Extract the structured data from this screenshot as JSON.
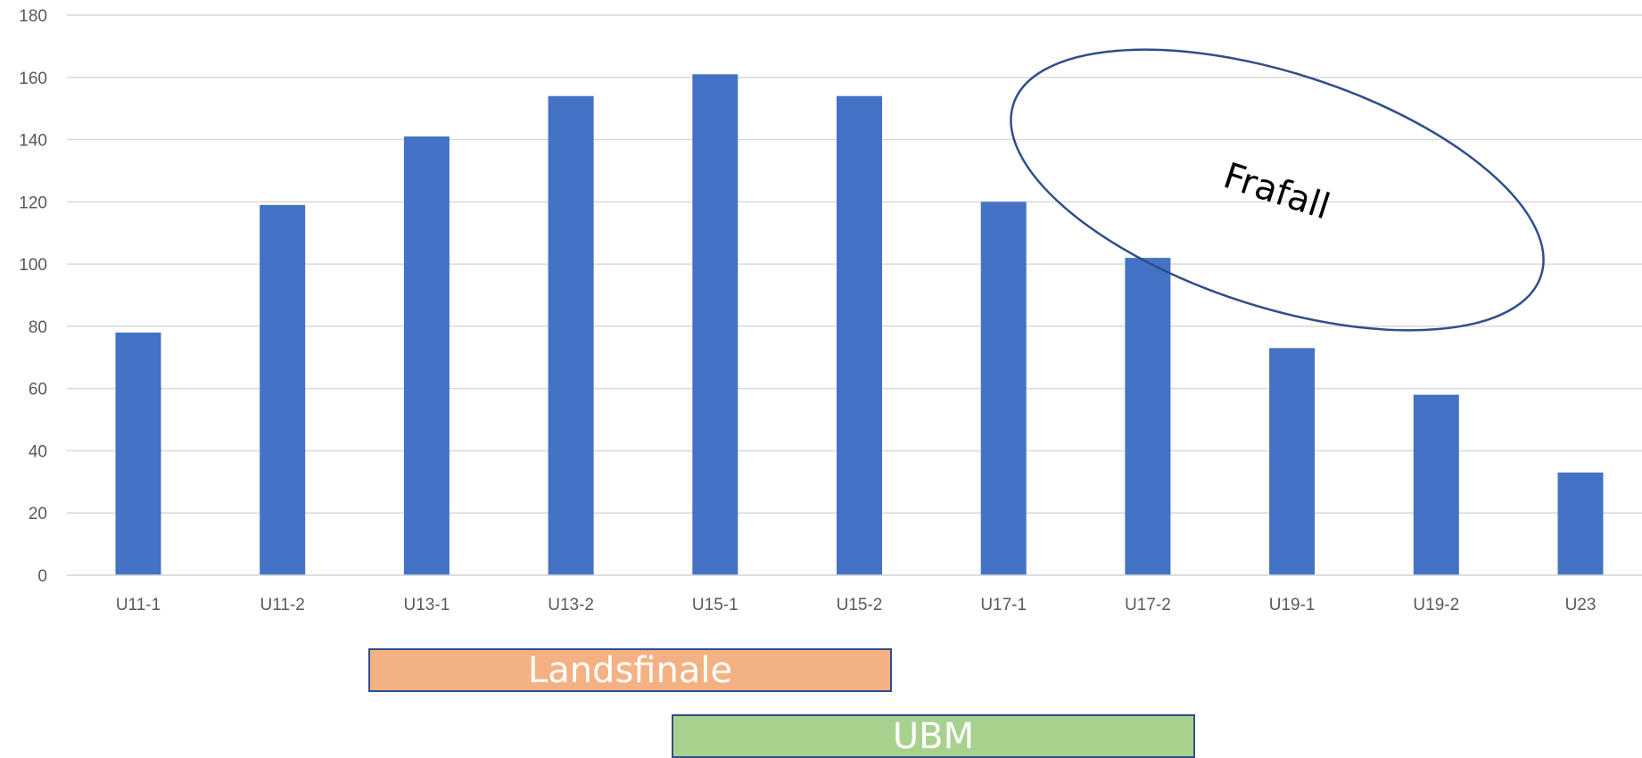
{
  "chart_data": {
    "type": "bar",
    "categories": [
      "U11-1",
      "U11-2",
      "U13-1",
      "U13-2",
      "U15-1",
      "U15-2",
      "U17-1",
      "U17-2",
      "U19-1",
      "U19-2",
      "U23"
    ],
    "values": [
      78,
      119,
      141,
      154,
      161,
      154,
      120,
      102,
      73,
      58,
      33
    ],
    "ylim": [
      0,
      180
    ],
    "yticks": [
      0,
      20,
      40,
      60,
      80,
      100,
      120,
      140,
      160,
      180
    ],
    "grid": true,
    "bar_color": "#4472c4",
    "annotations": {
      "ellipse_label": "Frafall",
      "boxes": [
        {
          "label": "Landsfinale",
          "color": "#f4b183"
        },
        {
          "label": "UBM",
          "color": "#a9d18e"
        }
      ]
    }
  }
}
